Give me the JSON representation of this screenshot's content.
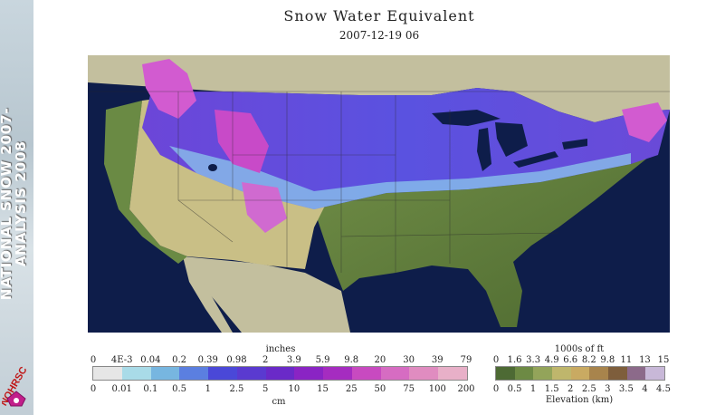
{
  "header": {
    "title": "Snow Water Equivalent",
    "date": "2007-12-19 06"
  },
  "sidebar": {
    "title_line1": "NATIONAL SNOW 2007-",
    "title_line2": "ANALYSIS 2008",
    "logo_text": "NOHRSC"
  },
  "snow_legend": {
    "top_label": "inches",
    "bottom_label": "cm",
    "inches_ticks": [
      "0",
      "4E-3",
      "0.04",
      "0.2",
      "0.39",
      "0.98",
      "2",
      "3.9",
      "5.9",
      "9.8",
      "20",
      "30",
      "39",
      "79"
    ],
    "cm_ticks": [
      "0",
      "0.01",
      "0.1",
      "0.5",
      "1",
      "2.5",
      "5",
      "10",
      "15",
      "25",
      "50",
      "75",
      "100",
      "200"
    ],
    "colors": [
      "#e6e6e6",
      "#a9dbe8",
      "#77b6e0",
      "#5b7fe0",
      "#4a48d8",
      "#5a3ad0",
      "#6a2ac8",
      "#8a24c4",
      "#a52cc0",
      "#c84ac0",
      "#d66cc2",
      "#e08cc0",
      "#e8b0c8"
    ]
  },
  "elevation_legend": {
    "top_label": "1000s of ft",
    "bottom_label": "Elevation (km)",
    "ft_ticks": [
      "0",
      "1.6",
      "3.3",
      "4.9",
      "6.6",
      "8.2",
      "9.8",
      "11",
      "13",
      "15"
    ],
    "km_ticks": [
      "0",
      "0.5",
      "1",
      "1.5",
      "2",
      "2.5",
      "3",
      "3.5",
      "4",
      "4.5"
    ],
    "colors": [
      "#4d6a34",
      "#6d8a44",
      "#93a45a",
      "#bfb66c",
      "#c9aa62",
      "#a8844c",
      "#7e5e3c",
      "#8c6a8a",
      "#c8b8d8"
    ]
  },
  "colors": {
    "ocean": "#0e1d4a",
    "land_outside": "#c3bf9e",
    "lowland": "#5f7a3c",
    "snow_light": "#8fd0ec",
    "snow_blue": "#5a4fe0",
    "snow_purple": "#7a2fd0",
    "snow_magenta": "#d25bd0",
    "mountain_tan": "#c9bf86"
  }
}
